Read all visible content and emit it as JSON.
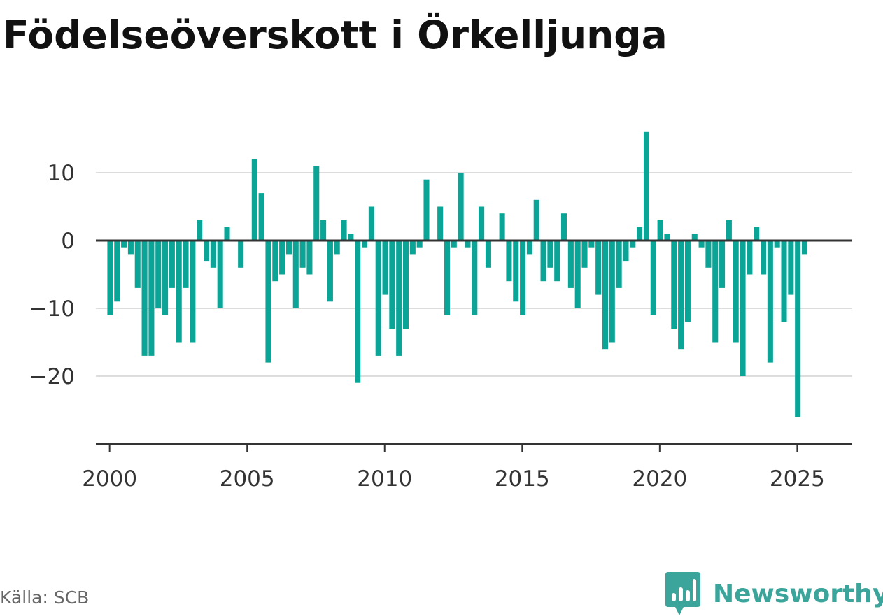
{
  "title": "Födelseöverskott i Örkelljunga",
  "source": "Källa: SCB",
  "brand": {
    "name": "Newsworthy",
    "icon": "newsworthy-logo-icon"
  },
  "colors": {
    "bar": "#0aa597",
    "grid": "#dddddd",
    "axis": "#333333",
    "brand": "#3ba49b"
  },
  "chart_data": {
    "type": "bar",
    "title": "Födelseöverskott i Örkelljunga",
    "xlabel": "",
    "ylabel": "",
    "frequency": "quarterly",
    "xlim": [
      1999.5,
      2027.0
    ],
    "ylim": [
      -30,
      20
    ],
    "yticks": [
      10,
      0,
      -10,
      -20
    ],
    "ytick_labels": [
      "10",
      "0",
      "−10",
      "−20"
    ],
    "xticks": [
      2000,
      2005,
      2010,
      2015,
      2020,
      2025
    ],
    "xtick_labels": [
      "2000",
      "2005",
      "2010",
      "2015",
      "2020",
      "2025"
    ],
    "grid": true,
    "legend": "none",
    "values": [
      -11,
      -9,
      -1,
      -2,
      -7,
      -17,
      -17,
      -10,
      -11,
      -7,
      -15,
      -7,
      -15,
      3,
      -3,
      -4,
      -10,
      2,
      0,
      -4,
      0,
      12,
      7,
      -18,
      -6,
      -5,
      -2,
      -10,
      -4,
      -5,
      11,
      3,
      -9,
      -2,
      3,
      1,
      -21,
      -1,
      5,
      -17,
      -8,
      -13,
      -17,
      -13,
      -2,
      -1,
      9,
      0,
      5,
      -11,
      -1,
      10,
      -1,
      -11,
      5,
      -4,
      0,
      4,
      -6,
      -9,
      -11,
      -2,
      6,
      -6,
      -4,
      -6,
      4,
      -7,
      -10,
      -4,
      -1,
      -8,
      -16,
      -15,
      -7,
      -3,
      -1,
      2,
      16,
      -11,
      3,
      1,
      -13,
      -16,
      -12,
      1,
      -1,
      -4,
      -15,
      -7,
      3,
      -15,
      -20,
      -5,
      2,
      -5,
      -18,
      -1,
      -12,
      -8,
      -26,
      -2
    ]
  }
}
